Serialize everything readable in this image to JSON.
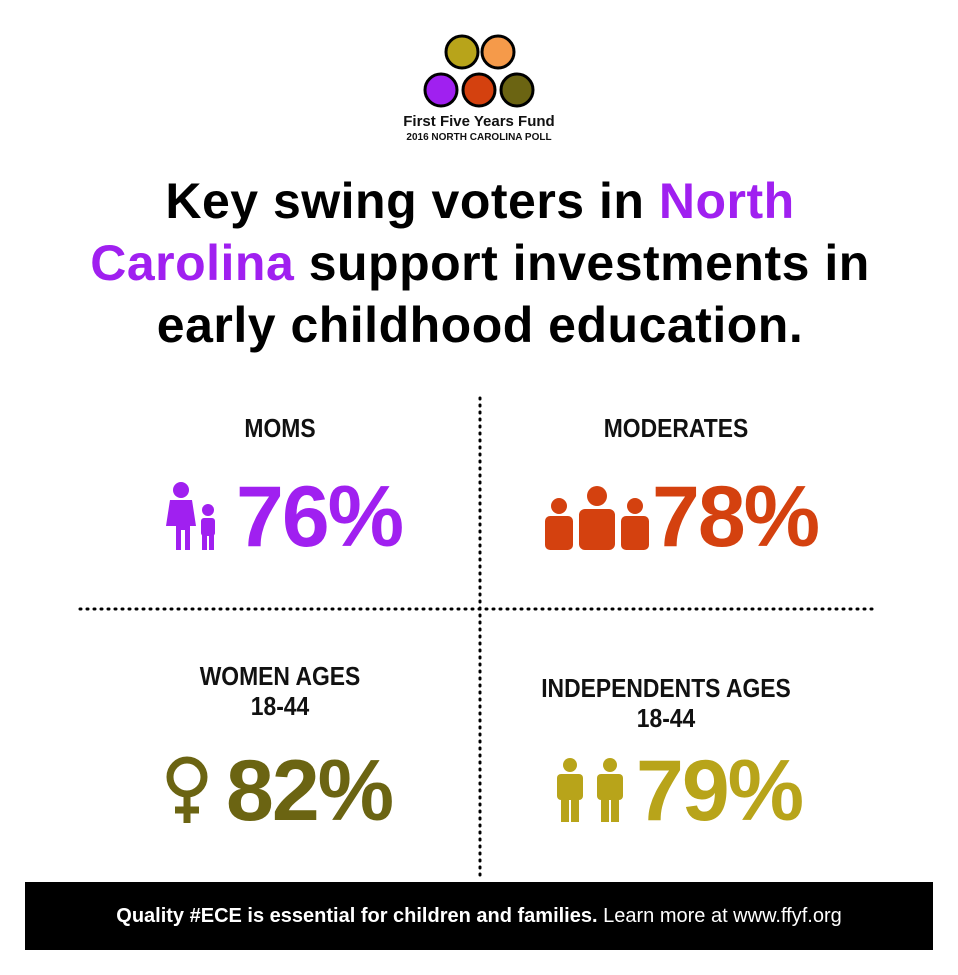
{
  "logo": {
    "name": "First Five Years Fund",
    "subtitle": "2016 NORTH CAROLINA POLL"
  },
  "headline": {
    "part1": "Key swing voters in",
    "highlight": "North Carolina",
    "part2": "support investments in early childhood education."
  },
  "stats": [
    {
      "label": "MOMS",
      "value": "76%"
    },
    {
      "label": "MODERATES",
      "value": "78%"
    },
    {
      "label": "WOMEN AGES 18-44",
      "value": "82%"
    },
    {
      "label": "INDEPENDENTS AGES 18-44",
      "value": "79%"
    }
  ],
  "footer": {
    "bold": "Quality #ECE is essential for children and families.",
    "regular": "Learn more at www.ffyf.org"
  }
}
